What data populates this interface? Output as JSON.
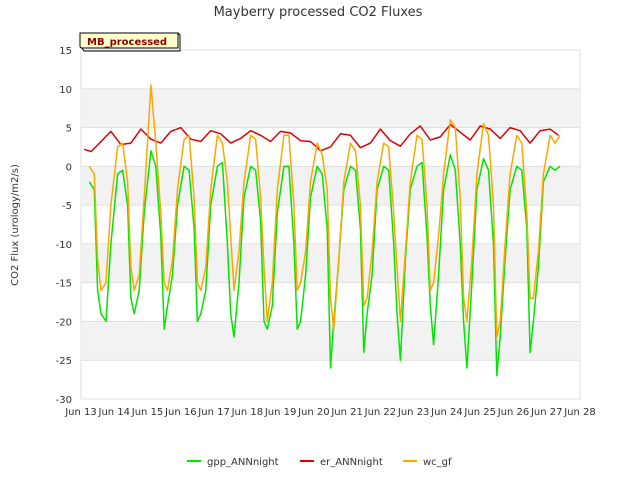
{
  "chart_data": {
    "type": "line",
    "title": "Mayberry processed CO2 Fluxes",
    "ylabel": "CO2 Flux (urology/m2/s)",
    "xlabel": "",
    "tag": "MB_processed",
    "ylim": [
      -30,
      15
    ],
    "yticks": [
      -30,
      -25,
      -20,
      -15,
      -10,
      -5,
      0,
      5,
      10,
      15
    ],
    "xlim": [
      13,
      28
    ],
    "xticks": [
      {
        "pos": 13,
        "label": "Jun 13"
      },
      {
        "pos": 14,
        "label": "Jun 14"
      },
      {
        "pos": 15,
        "label": "Jun 15"
      },
      {
        "pos": 16,
        "label": "Jun 16"
      },
      {
        "pos": 17,
        "label": "Jun 17"
      },
      {
        "pos": 18,
        "label": "Jun 18"
      },
      {
        "pos": 19,
        "label": "Jun 19"
      },
      {
        "pos": 20,
        "label": "Jun 20"
      },
      {
        "pos": 21,
        "label": "Jun 21"
      },
      {
        "pos": 22,
        "label": "Jun 22"
      },
      {
        "pos": 23,
        "label": "Jun 23"
      },
      {
        "pos": 24,
        "label": "Jun 24"
      },
      {
        "pos": 25,
        "label": "Jun 25"
      },
      {
        "pos": 26,
        "label": "Jun 26"
      },
      {
        "pos": 27,
        "label": "Jun 27"
      },
      {
        "pos": 28,
        "label": "Jun 28"
      }
    ],
    "grid": true,
    "legend_position": "bottom",
    "series": [
      {
        "name": "gpp_ANNnight",
        "color": "#00e600",
        "x": [
          13.25,
          13.4,
          13.5,
          13.6,
          13.75,
          13.9,
          14.1,
          14.25,
          14.4,
          14.5,
          14.6,
          14.75,
          14.9,
          15.1,
          15.25,
          15.4,
          15.5,
          15.6,
          15.75,
          15.9,
          16.1,
          16.25,
          16.4,
          16.5,
          16.6,
          16.75,
          16.9,
          17.1,
          17.25,
          17.4,
          17.5,
          17.6,
          17.75,
          17.9,
          18.1,
          18.25,
          18.4,
          18.5,
          18.6,
          18.75,
          18.9,
          19.1,
          19.25,
          19.4,
          19.5,
          19.6,
          19.75,
          19.9,
          20.1,
          20.25,
          20.4,
          20.5,
          20.6,
          20.75,
          20.9,
          21.1,
          21.25,
          21.4,
          21.5,
          21.6,
          21.75,
          21.9,
          22.1,
          22.25,
          22.4,
          22.5,
          22.6,
          22.75,
          22.9,
          23.1,
          23.25,
          23.4,
          23.5,
          23.6,
          23.75,
          23.9,
          24.1,
          24.25,
          24.4,
          24.5,
          24.6,
          24.75,
          24.9,
          25.1,
          25.25,
          25.4,
          25.5,
          25.6,
          25.75,
          25.9,
          26.1,
          26.25,
          26.4,
          26.5,
          26.6,
          26.75,
          26.9,
          27.1,
          27.25,
          27.4
        ],
        "y": [
          -2,
          -3,
          -16,
          -19,
          -20,
          -10,
          -1,
          -0.5,
          -5,
          -17,
          -19,
          -16,
          -6,
          2,
          0,
          -9,
          -21,
          -18,
          -14,
          -5,
          0,
          -0.5,
          -8,
          -20,
          -19,
          -16,
          -5,
          0,
          0.5,
          -10,
          -19,
          -22,
          -15,
          -4,
          0,
          -0.5,
          -7,
          -20,
          -21,
          -18,
          -6,
          0,
          0,
          -10,
          -21,
          -20,
          -14,
          -4,
          0,
          -1,
          -8,
          -26,
          -20,
          -12,
          -3,
          0,
          -0.5,
          -8,
          -24,
          -19,
          -14,
          -3,
          0,
          -0.5,
          -10,
          -19,
          -25,
          -12,
          -3,
          0,
          0.5,
          -9,
          -18,
          -23,
          -14,
          -3,
          1.5,
          -0.5,
          -10,
          -20,
          -26,
          -15,
          -3,
          1,
          -0.5,
          -10,
          -27,
          -22,
          -12,
          -3,
          0,
          -0.5,
          -8,
          -24,
          -20,
          -13,
          -2,
          0,
          -0.5,
          0
        ]
      },
      {
        "name": "er_ANNnight",
        "color": "#dd0000",
        "x": [
          13.1,
          13.3,
          13.6,
          13.9,
          14.2,
          14.5,
          14.8,
          15.1,
          15.4,
          15.7,
          16.0,
          16.3,
          16.6,
          16.9,
          17.2,
          17.5,
          17.8,
          18.1,
          18.4,
          18.7,
          19.0,
          19.3,
          19.6,
          19.9,
          20.2,
          20.5,
          20.8,
          21.1,
          21.4,
          21.7,
          22.0,
          22.3,
          22.6,
          22.9,
          23.2,
          23.5,
          23.8,
          24.1,
          24.4,
          24.7,
          25.0,
          25.3,
          25.6,
          25.9,
          26.2,
          26.5,
          26.8,
          27.1,
          27.35
        ],
        "y": [
          2.2,
          1.9,
          3.2,
          4.5,
          2.8,
          3.0,
          4.8,
          3.5,
          3.0,
          4.5,
          5.0,
          3.5,
          3.2,
          4.6,
          4.2,
          3.0,
          3.6,
          4.6,
          4.0,
          3.2,
          4.5,
          4.3,
          3.3,
          3.2,
          2.0,
          2.5,
          4.2,
          4.0,
          2.4,
          3.0,
          4.8,
          3.3,
          2.6,
          4.2,
          5.2,
          3.4,
          3.8,
          5.4,
          4.4,
          3.4,
          5.2,
          4.8,
          3.6,
          5.0,
          4.6,
          3.0,
          4.6,
          4.8,
          4.0
        ]
      },
      {
        "name": "wc_gf",
        "color": "#ffa500",
        "x": [
          13.25,
          13.4,
          13.5,
          13.6,
          13.75,
          13.9,
          14.1,
          14.25,
          14.4,
          14.5,
          14.6,
          14.75,
          14.9,
          15.0,
          15.1,
          15.25,
          15.4,
          15.5,
          15.6,
          15.75,
          15.9,
          16.1,
          16.25,
          16.4,
          16.5,
          16.6,
          16.75,
          16.9,
          17.1,
          17.25,
          17.4,
          17.5,
          17.6,
          17.75,
          17.9,
          18.1,
          18.25,
          18.4,
          18.5,
          18.6,
          18.75,
          18.9,
          19.1,
          19.25,
          19.4,
          19.5,
          19.6,
          19.75,
          19.9,
          20.1,
          20.25,
          20.4,
          20.5,
          20.6,
          20.75,
          20.9,
          21.1,
          21.25,
          21.4,
          21.5,
          21.6,
          21.75,
          21.9,
          22.1,
          22.25,
          22.4,
          22.5,
          22.6,
          22.75,
          22.9,
          23.1,
          23.25,
          23.4,
          23.5,
          23.6,
          23.75,
          23.9,
          24.1,
          24.25,
          24.4,
          24.5,
          24.6,
          24.75,
          24.9,
          25.1,
          25.25,
          25.4,
          25.5,
          25.6,
          25.75,
          25.9,
          26.1,
          26.25,
          26.4,
          26.5,
          26.6,
          26.75,
          26.9,
          27.1,
          27.25,
          27.4
        ],
        "y": [
          0,
          -1,
          -12,
          -16,
          -15,
          -5,
          2.5,
          3,
          -2,
          -13,
          -16,
          -14,
          -4,
          3,
          10.5,
          3,
          -6,
          -15,
          -16,
          -12,
          -3,
          3.5,
          4,
          -4,
          -15,
          -16,
          -13,
          -3,
          4,
          3,
          -2,
          -9,
          -16,
          -11,
          -2,
          4,
          3.5,
          -4,
          -13,
          -20,
          -15,
          -3,
          4,
          4,
          -5,
          -16,
          -15,
          -11,
          -2,
          3,
          1.5,
          -3,
          -17,
          -21,
          -12,
          -2,
          3,
          2,
          -5,
          -18,
          -17,
          -11,
          -2,
          3,
          2.5,
          -6,
          -13,
          -20,
          -11,
          -2,
          4,
          3.5,
          -5,
          -16,
          -15,
          -9,
          -1,
          6,
          5,
          -4,
          -17,
          -20,
          -12,
          -1,
          5.5,
          4,
          -5,
          -22,
          -20,
          -10,
          -1,
          4,
          3,
          -6,
          -17,
          -17,
          -11,
          -1,
          4,
          3,
          4
        ]
      }
    ]
  }
}
